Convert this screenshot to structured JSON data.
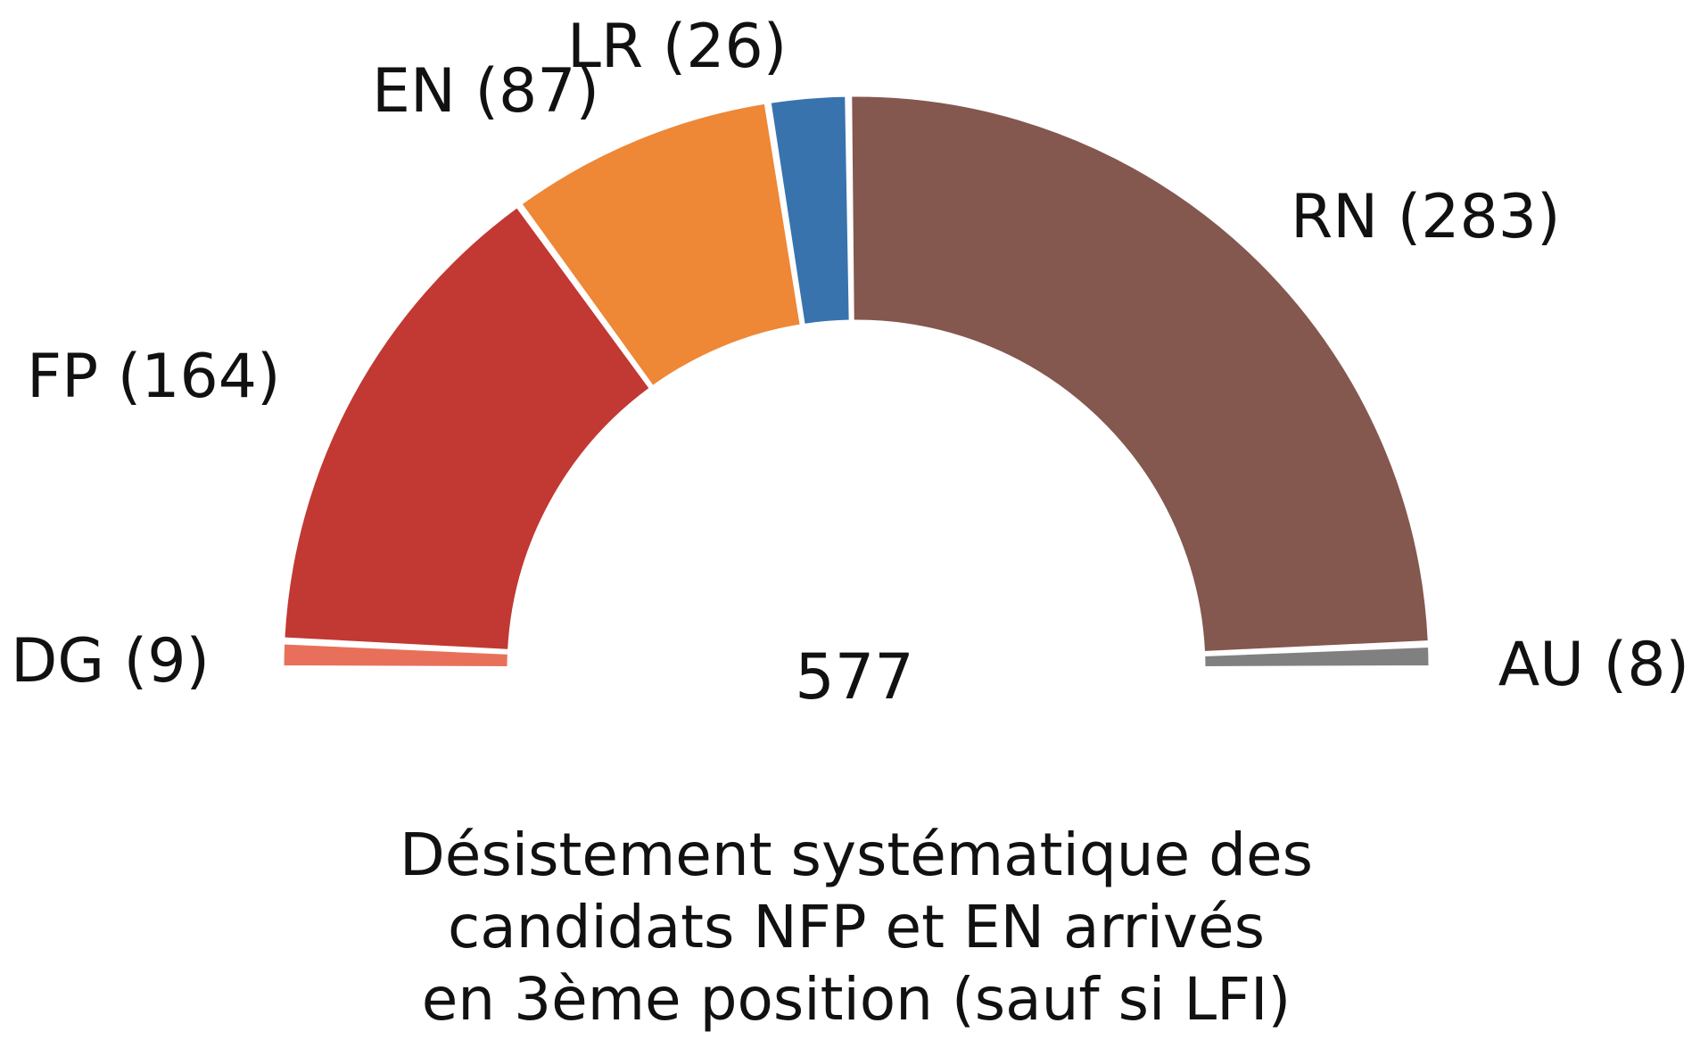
{
  "chart_data": {
    "type": "parliament-semicircle",
    "total": "577",
    "segments": [
      {
        "label": "DG (9)",
        "value": 9,
        "color": "#e8705a"
      },
      {
        "label": "FP (164)",
        "value": 164,
        "color": "#c23833"
      },
      {
        "label": "EN (87)",
        "value": 87,
        "color": "#ee8736"
      },
      {
        "label": "LR (26)",
        "value": 26,
        "color": "#3873ad"
      },
      {
        "label": "RN (283)",
        "value": 283,
        "color": "#84574f"
      },
      {
        "label": "AU (8)",
        "value": 8,
        "color": "#808080"
      }
    ],
    "caption": [
      "Désistement systématique des",
      "candidats NFP et EN arrivés",
      "en 3ème position (sauf si LFI)"
    ]
  }
}
